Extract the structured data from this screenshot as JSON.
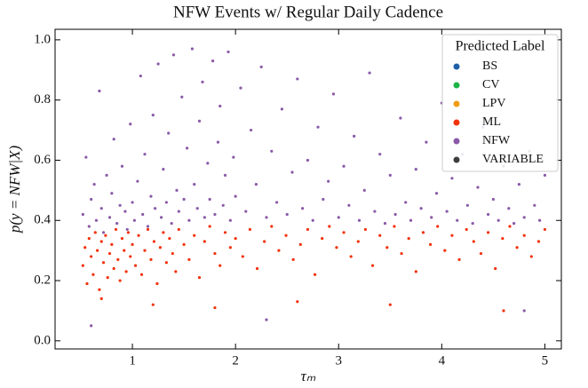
{
  "chart_data": {
    "type": "scatter",
    "title": "NFW Events w/ Regular Daily Cadence",
    "xlabel": "τₘ",
    "ylabel": "p(y = NFW|X)",
    "xlim": [
      0.25,
      5.16
    ],
    "ylim": [
      -0.027,
      1.035
    ],
    "xticks": [
      1,
      2,
      3,
      4,
      5
    ],
    "yticks": [
      {
        "value": 0,
        "label": "0.0"
      },
      0.2,
      0.4,
      0.6,
      0.8,
      {
        "value": 1,
        "label": "1.0"
      }
    ],
    "legend_title": "Predicted Label",
    "legend": "upper right",
    "series": [
      {
        "name": "BS",
        "color": "#1f5fa8",
        "x": [],
        "values": []
      },
      {
        "name": "CV",
        "color": "#1db447",
        "x": [],
        "values": []
      },
      {
        "name": "LPV",
        "color": "#f39c12",
        "x": [],
        "values": []
      },
      {
        "name": "ML",
        "color": "#f2320c",
        "x": [
          0.52,
          0.54,
          0.56,
          0.58,
          0.6,
          0.62,
          0.64,
          0.66,
          0.68,
          0.7,
          0.72,
          0.74,
          0.76,
          0.78,
          0.8,
          0.82,
          0.84,
          0.86,
          0.88,
          0.9,
          0.92,
          0.94,
          0.96,
          0.98,
          1.0,
          1.03,
          1.06,
          1.09,
          1.12,
          1.15,
          1.18,
          1.21,
          1.24,
          1.27,
          1.3,
          1.33,
          1.36,
          1.39,
          1.42,
          1.45,
          1.5,
          1.55,
          1.6,
          1.65,
          1.7,
          1.75,
          1.8,
          1.85,
          1.9,
          1.95,
          2.0,
          2.07,
          2.14,
          2.21,
          2.28,
          2.35,
          2.42,
          2.49,
          2.56,
          2.63,
          2.7,
          2.77,
          2.84,
          2.91,
          2.98,
          3.05,
          3.12,
          3.19,
          3.26,
          3.33,
          3.4,
          3.47,
          3.54,
          3.61,
          3.68,
          3.75,
          3.82,
          3.89,
          3.96,
          4.03,
          4.1,
          4.17,
          4.24,
          4.31,
          4.38,
          4.45,
          4.52,
          4.59,
          4.66,
          4.73,
          4.8,
          4.87,
          4.94,
          5.0,
          0.7,
          1.2,
          1.8,
          2.6,
          3.5,
          4.6
        ],
        "values": [
          0.25,
          0.31,
          0.19,
          0.34,
          0.28,
          0.22,
          0.36,
          0.3,
          0.17,
          0.33,
          0.26,
          0.35,
          0.21,
          0.29,
          0.32,
          0.24,
          0.37,
          0.27,
          0.2,
          0.34,
          0.3,
          0.23,
          0.36,
          0.28,
          0.32,
          0.25,
          0.35,
          0.22,
          0.3,
          0.37,
          0.27,
          0.33,
          0.19,
          0.31,
          0.36,
          0.26,
          0.34,
          0.29,
          0.23,
          0.37,
          0.32,
          0.27,
          0.35,
          0.21,
          0.33,
          0.38,
          0.29,
          0.25,
          0.36,
          0.31,
          0.34,
          0.28,
          0.37,
          0.24,
          0.33,
          0.38,
          0.3,
          0.35,
          0.27,
          0.32,
          0.37,
          0.22,
          0.34,
          0.38,
          0.31,
          0.36,
          0.28,
          0.33,
          0.37,
          0.25,
          0.35,
          0.31,
          0.38,
          0.29,
          0.34,
          0.23,
          0.36,
          0.32,
          0.38,
          0.3,
          0.35,
          0.27,
          0.37,
          0.33,
          0.29,
          0.36,
          0.24,
          0.34,
          0.38,
          0.31,
          0.35,
          0.28,
          0.33,
          0.37,
          0.14,
          0.12,
          0.11,
          0.13,
          0.12,
          0.1
        ]
      },
      {
        "name": "NFW",
        "color": "#8a5aa8",
        "x": [
          0.52,
          0.55,
          0.58,
          0.6,
          0.63,
          0.65,
          0.68,
          0.7,
          0.72,
          0.75,
          0.78,
          0.8,
          0.82,
          0.85,
          0.88,
          0.9,
          0.93,
          0.95,
          0.98,
          1.0,
          1.02,
          1.05,
          1.08,
          1.1,
          1.12,
          1.15,
          1.18,
          1.2,
          1.22,
          1.25,
          1.28,
          1.3,
          1.33,
          1.35,
          1.38,
          1.4,
          1.43,
          1.45,
          1.48,
          1.5,
          1.53,
          1.55,
          1.58,
          1.6,
          1.63,
          1.65,
          1.68,
          1.7,
          1.73,
          1.75,
          1.78,
          1.8,
          1.83,
          1.85,
          1.88,
          1.9,
          1.93,
          1.95,
          1.98,
          2.0,
          2.05,
          2.1,
          2.15,
          2.2,
          2.25,
          2.3,
          2.35,
          2.4,
          2.45,
          2.5,
          2.55,
          2.6,
          2.65,
          2.7,
          2.75,
          2.8,
          2.85,
          2.9,
          2.95,
          3.0,
          3.05,
          3.1,
          3.15,
          3.2,
          3.25,
          3.3,
          3.35,
          3.4,
          3.45,
          3.5,
          3.55,
          3.6,
          3.65,
          3.7,
          3.75,
          3.8,
          3.85,
          3.9,
          3.95,
          4.0,
          4.05,
          4.1,
          4.15,
          4.2,
          4.25,
          4.3,
          4.35,
          4.4,
          4.45,
          4.5,
          4.55,
          4.6,
          4.65,
          4.7,
          4.75,
          4.8,
          4.85,
          4.9,
          4.95,
          5.0,
          0.6,
          2.3,
          4.8
        ],
        "values": [
          0.42,
          0.61,
          0.38,
          0.47,
          0.52,
          0.4,
          0.83,
          0.44,
          0.36,
          0.55,
          0.41,
          0.49,
          0.67,
          0.39,
          0.45,
          0.58,
          0.43,
          0.37,
          0.72,
          0.46,
          0.4,
          0.53,
          0.88,
          0.42,
          0.62,
          0.38,
          0.48,
          0.75,
          0.44,
          0.92,
          0.41,
          0.57,
          0.46,
          0.69,
          0.39,
          0.95,
          0.5,
          0.43,
          0.81,
          0.47,
          0.64,
          0.4,
          0.97,
          0.52,
          0.44,
          0.73,
          0.86,
          0.41,
          0.59,
          0.47,
          0.93,
          0.42,
          0.66,
          0.78,
          0.45,
          0.55,
          0.96,
          0.4,
          0.61,
          0.48,
          0.84,
          0.43,
          0.7,
          0.52,
          0.91,
          0.41,
          0.63,
          0.46,
          0.77,
          0.42,
          0.56,
          0.87,
          0.44,
          0.6,
          0.4,
          0.71,
          0.47,
          0.53,
          0.82,
          0.41,
          0.58,
          0.45,
          0.68,
          0.4,
          0.5,
          0.89,
          0.43,
          0.62,
          0.39,
          0.55,
          0.42,
          0.74,
          0.46,
          0.4,
          0.57,
          0.44,
          0.66,
          0.41,
          0.49,
          0.79,
          0.43,
          0.54,
          0.4,
          0.62,
          0.45,
          0.39,
          0.51,
          0.71,
          0.42,
          0.47,
          0.4,
          0.58,
          0.44,
          0.39,
          0.52,
          0.41,
          0.63,
          0.45,
          0.4,
          0.55,
          0.05,
          0.07,
          0.1
        ]
      },
      {
        "name": "VARIABLE",
        "color": "#3d3d3d",
        "x": [],
        "values": []
      }
    ]
  }
}
